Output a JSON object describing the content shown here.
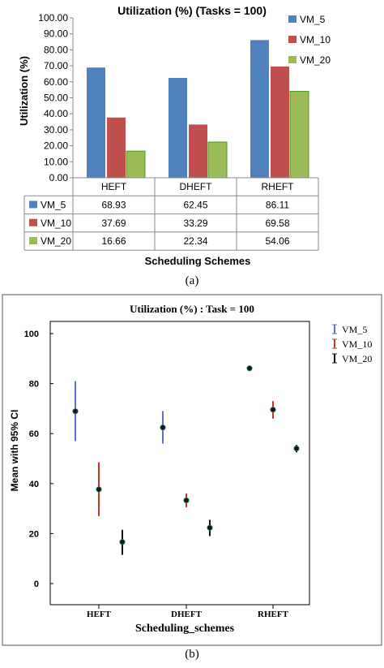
{
  "chart_data": [
    {
      "type": "bar",
      "title": "Utilization (%) (Tasks = 100)",
      "xlabel": "Scheduling Schemes",
      "ylabel": "Utilization (%)",
      "ylim": [
        0,
        100
      ],
      "yticks": [
        "0.00",
        "10.00",
        "20.00",
        "30.00",
        "40.00",
        "50.00",
        "60.00",
        "70.00",
        "80.00",
        "90.00",
        "100.00"
      ],
      "categories": [
        "HEFT",
        "DHEFT",
        "RHEFT"
      ],
      "series": [
        {
          "name": "VM_5",
          "color": "#4f81bd",
          "values": [
            68.93,
            62.45,
            86.11
          ],
          "labels": [
            "68.93",
            "62.45",
            "86.11"
          ]
        },
        {
          "name": "VM_10",
          "color": "#c0504d",
          "values": [
            37.69,
            33.29,
            69.58
          ],
          "labels": [
            "37.69",
            "33.29",
            "69.58"
          ]
        },
        {
          "name": "VM_20",
          "color": "#9bbb59",
          "values": [
            16.66,
            22.34,
            54.06
          ],
          "labels": [
            "16.66",
            "22.34",
            "54.06"
          ]
        }
      ],
      "grid": false,
      "legend": "right",
      "data_table": true,
      "caption": "(a)"
    },
    {
      "type": "scatter",
      "title": "Utilization (%) : Task = 100",
      "xlabel": "Scheduling_schemes",
      "ylabel": "Mean with 95% CI",
      "ylim": [
        0,
        100
      ],
      "yticks": [
        "0",
        "20",
        "40",
        "60",
        "80",
        "100"
      ],
      "categories": [
        "HEFT",
        "DHEFT",
        "RHEFT"
      ],
      "series": [
        {
          "name": "VM_5",
          "color": "#5b6fcb",
          "mean": [
            68.93,
            62.45,
            86.11
          ],
          "lower": [
            57,
            56,
            85.5
          ],
          "upper": [
            81,
            69,
            86.7
          ]
        },
        {
          "name": "VM_10",
          "color": "#c0392b",
          "mean": [
            37.69,
            33.29,
            69.58
          ],
          "lower": [
            27,
            30.5,
            66
          ],
          "upper": [
            48.5,
            36,
            73
          ]
        },
        {
          "name": "VM_20",
          "color": "#111111",
          "mean": [
            16.66,
            22.34,
            54.06
          ],
          "lower": [
            11.5,
            19,
            52.5
          ],
          "upper": [
            21.5,
            25.5,
            55.5
          ]
        }
      ],
      "grid": false,
      "legend": "top-right",
      "caption": "(b)"
    }
  ]
}
